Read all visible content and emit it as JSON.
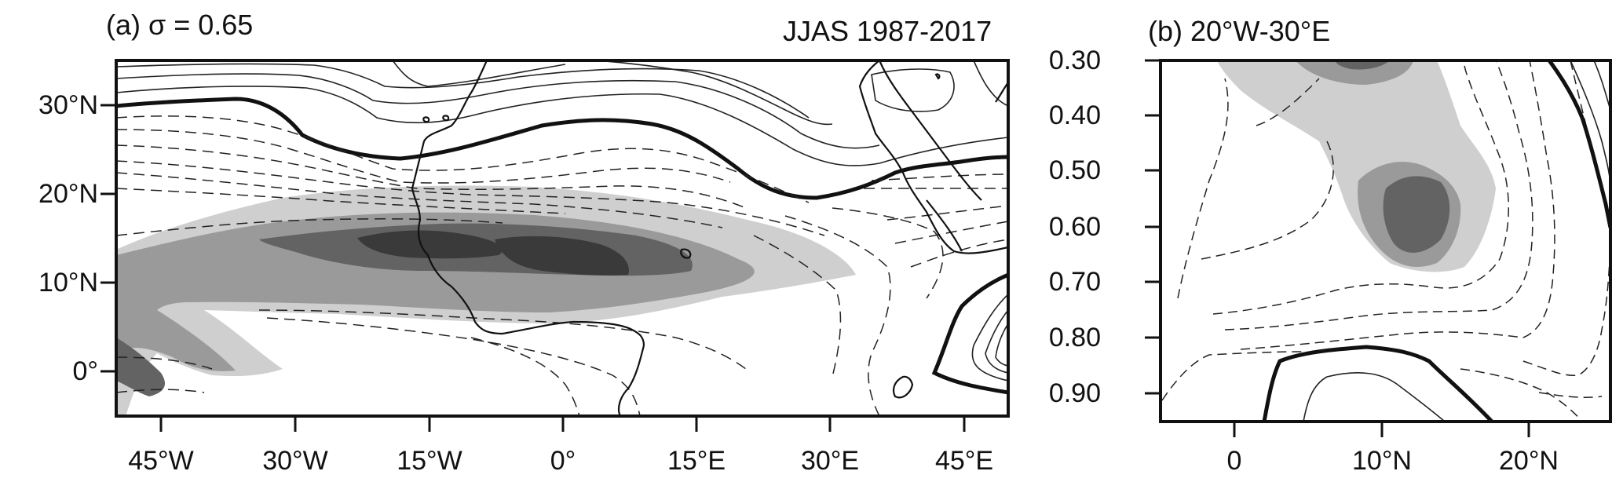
{
  "panel_a": {
    "title_left": "(a) σ = 0.65",
    "title_right": "JJAS 1987-2017",
    "y_ticks": [
      "30°N",
      "20°N",
      "10°N",
      "0°"
    ],
    "x_ticks": [
      "45°W",
      "30°W",
      "15°W",
      "0°",
      "15°E",
      "30°E",
      "45°E"
    ]
  },
  "panel_b": {
    "title": "(b) 20°W-30°E",
    "y_ticks": [
      "0.30",
      "0.40",
      "0.50",
      "0.60",
      "0.70",
      "0.80",
      "0.90"
    ],
    "x_ticks": [
      "0",
      "10°N",
      "20°N"
    ]
  },
  "colors": {
    "shade_light": "#cfcfcf",
    "shade_mid": "#9a9a9a",
    "shade_dark": "#636363",
    "shade_darkest": "#3a3a3a",
    "line": "#111111"
  }
}
